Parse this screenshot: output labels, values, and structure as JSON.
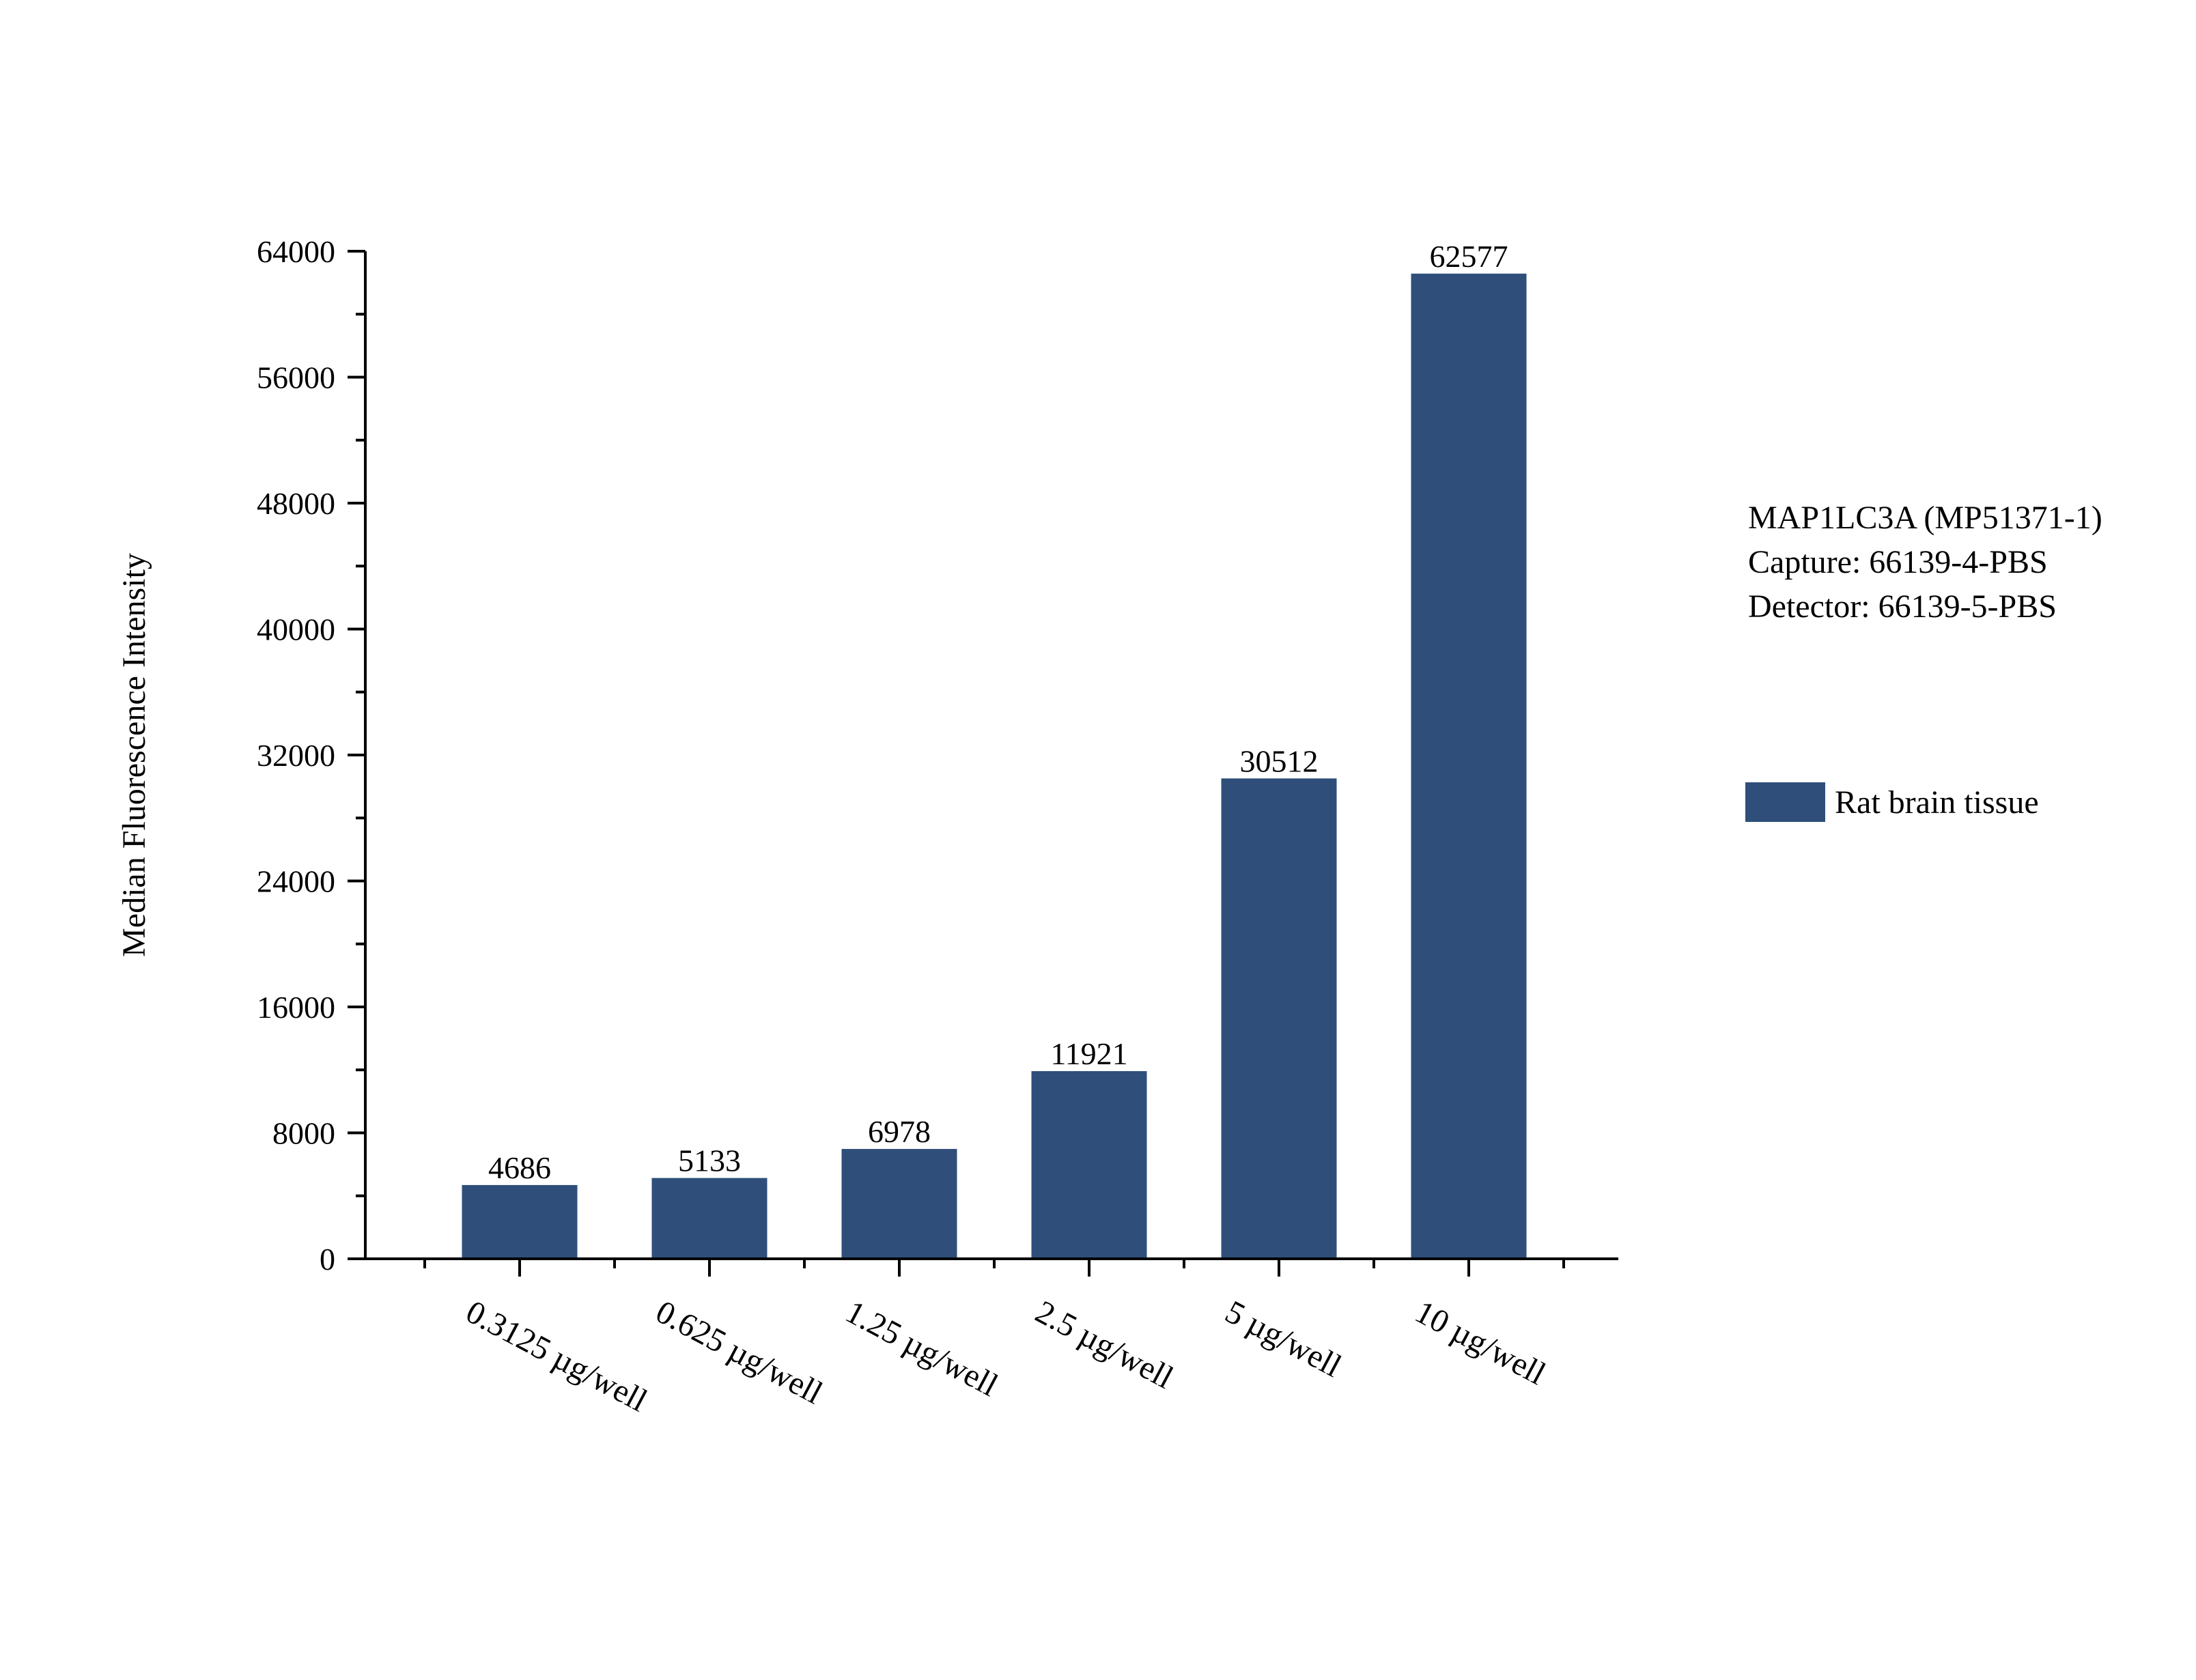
{
  "chart_data": {
    "type": "bar",
    "categories": [
      "0.3125 µg/well",
      "0.625 µg/well",
      "1.25 µg/well",
      "2.5 µg/well",
      "5 µg/well",
      "10 µg/well"
    ],
    "series": [
      {
        "name": "Rat brain tissue",
        "values": [
          4686,
          5133,
          6978,
          11921,
          30512,
          62577
        ],
        "color": "#2f4f7a"
      }
    ],
    "data_labels": [
      "4686",
      "5133",
      "6978",
      "11921",
      "30512",
      "62577"
    ],
    "ylabel": "Median Fluorescence Intensity",
    "xlabel": "",
    "ylim": [
      0,
      64000
    ],
    "yticks": [
      0,
      8000,
      16000,
      24000,
      32000,
      40000,
      48000,
      56000,
      64000
    ],
    "ytick_labels": [
      "0",
      "8000",
      "16000",
      "24000",
      "32000",
      "40000",
      "48000",
      "56000",
      "64000"
    ],
    "grid": false,
    "legend_position": "right"
  },
  "annotation": {
    "line1": "MAP1LC3A (MP51371-1)",
    "line2": "Capture: 66139-4-PBS",
    "line3": "Detector: 66139-5-PBS"
  },
  "legend": {
    "label": "Rat brain tissue",
    "color": "#2f4f7a"
  }
}
